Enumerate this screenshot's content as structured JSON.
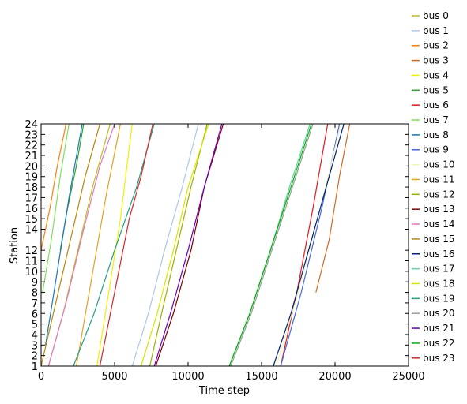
{
  "chart_data": {
    "type": "line",
    "xlabel": "Time step",
    "ylabel": "Station",
    "xlim": [
      0,
      25000
    ],
    "ylim": [
      1,
      24
    ],
    "x_ticks": [
      {
        "value": 0,
        "label": "0"
      },
      {
        "value": 5000,
        "label": "5000"
      },
      {
        "value": 10000,
        "label": "10000"
      },
      {
        "value": 15000,
        "label": "15000"
      },
      {
        "value": 20000,
        "label": "20000"
      },
      {
        "value": 25000,
        "label": "25000"
      }
    ],
    "y_ticks": [
      {
        "value": 1,
        "label": "1"
      },
      {
        "value": 2,
        "label": "2"
      },
      {
        "value": 3,
        "label": "3"
      },
      {
        "value": 4,
        "label": "4"
      },
      {
        "value": 5,
        "label": "5"
      },
      {
        "value": 6,
        "label": "6"
      },
      {
        "value": 7,
        "label": "7"
      },
      {
        "value": 8,
        "label": "8"
      },
      {
        "value": 9,
        "label": "9"
      },
      {
        "value": 10,
        "label": "10"
      },
      {
        "value": 11,
        "label": "11"
      },
      {
        "value": 12,
        "label": "12"
      },
      {
        "value": 14,
        "label": "14"
      },
      {
        "value": 15,
        "label": "15"
      },
      {
        "value": 16,
        "label": "16"
      },
      {
        "value": 17,
        "label": "17"
      },
      {
        "value": 18,
        "label": "18"
      },
      {
        "value": 19,
        "label": "19"
      },
      {
        "value": 20,
        "label": "20"
      },
      {
        "value": 21,
        "label": "21"
      },
      {
        "value": 22,
        "label": "22"
      },
      {
        "value": 23,
        "label": "23"
      },
      {
        "value": 24,
        "label": "24"
      }
    ],
    "legend_position": "right, outside plot",
    "grid": false,
    "series": [
      {
        "name": "bus  0",
        "color": "#bcbd22",
        "x": [
          500,
          1500,
          2500,
          3500,
          4700
        ],
        "y": [
          1,
          6,
          12,
          18,
          24
        ]
      },
      {
        "name": "bus  1",
        "color": "#aec7e8",
        "x": [
          6200,
          7300,
          8400,
          9600,
          10700
        ],
        "y": [
          1,
          6,
          12,
          18,
          24
        ]
      },
      {
        "name": "bus  2",
        "color": "#ff7f0e",
        "x": [
          0,
          600,
          1100,
          1700
        ],
        "y": [
          12,
          16,
          20,
          24
        ]
      },
      {
        "name": "bus  3",
        "color": "#d2691e",
        "x": [
          18700,
          19600,
          20300,
          21000
        ],
        "y": [
          8,
          13,
          19,
          24
        ]
      },
      {
        "name": "bus  4",
        "color": "#f0f000",
        "x": [
          3800,
          4600,
          5400,
          6200
        ],
        "y": [
          1,
          8,
          15,
          24
        ]
      },
      {
        "name": "bus  5",
        "color": "#2ca02c",
        "x": [
          1300,
          1800,
          2400,
          2900
        ],
        "y": [
          12,
          16,
          20,
          24
        ]
      },
      {
        "name": "bus  6",
        "color": "#e41a1c",
        "x": [
          16300,
          17400,
          18500,
          19500
        ],
        "y": [
          1,
          8,
          16,
          24
        ]
      },
      {
        "name": "bus  7",
        "color": "#7fe05a",
        "x": [
          100,
          700,
          1300,
          1900
        ],
        "y": [
          8,
          13,
          19,
          24
        ]
      },
      {
        "name": "bus  8",
        "color": "#1f77b4",
        "x": [
          300,
          1100,
          1900,
          2800
        ],
        "y": [
          3,
          10,
          17,
          24
        ]
      },
      {
        "name": "bus  9",
        "color": "#4169e1",
        "x": [
          16300,
          17700,
          19100,
          20300
        ],
        "y": [
          1,
          8,
          16,
          24
        ]
      },
      {
        "name": "bus  10",
        "color": "#f5f5b0",
        "x": [
          16000,
          17500,
          19000,
          20400
        ],
        "y": [
          1,
          8,
          16,
          24
        ]
      },
      {
        "name": "bus  11",
        "color": "#e8a020",
        "x": [
          2400,
          3400,
          4400,
          5400
        ],
        "y": [
          1,
          9,
          17,
          24
        ]
      },
      {
        "name": "bus  12",
        "color": "#9bb000",
        "x": [
          7400,
          8200,
          9200,
          10200,
          11300
        ],
        "y": [
          1,
          6,
          12,
          18,
          24
        ]
      },
      {
        "name": "bus  13",
        "color": "#800000",
        "x": [
          7800,
          9000,
          10200,
          11100,
          12400
        ],
        "y": [
          1,
          6,
          12,
          18,
          24
        ]
      },
      {
        "name": "bus  14",
        "color": "#e377c2",
        "x": [
          500,
          1700,
          2900,
          4000,
          5000
        ],
        "y": [
          1,
          7,
          14,
          20,
          24
        ]
      },
      {
        "name": "bus  15",
        "color": "#b8860b",
        "x": [
          0,
          1000,
          2000,
          3000,
          4000
        ],
        "y": [
          1,
          7,
          13,
          19,
          24
        ]
      },
      {
        "name": "bus  16",
        "color": "#00207f",
        "x": [
          15800,
          17000,
          18200,
          19400,
          20600
        ],
        "y": [
          1,
          6,
          12,
          18,
          24
        ]
      },
      {
        "name": "bus  17",
        "color": "#66cdaa",
        "x": [
          12800,
          14200,
          15600,
          16900,
          18300
        ],
        "y": [
          1,
          6,
          12,
          18,
          24
        ]
      },
      {
        "name": "bus  18",
        "color": "#d4e600",
        "x": [
          6800,
          7900,
          9000,
          10000,
          11400
        ],
        "y": [
          1,
          6,
          12,
          18,
          24
        ]
      },
      {
        "name": "bus  19",
        "color": "#20a080",
        "x": [
          2200,
          3600,
          5000,
          6500,
          7700
        ],
        "y": [
          1,
          6,
          12,
          18,
          24
        ]
      },
      {
        "name": "bus  20",
        "color": "#999999",
        "x": [
          12900,
          14300,
          15700,
          17100,
          18500
        ],
        "y": [
          1,
          6,
          12,
          18,
          24
        ]
      },
      {
        "name": "bus  21",
        "color": "#6a00c0",
        "x": [
          7700,
          8800,
          10000,
          11100,
          12300
        ],
        "y": [
          1,
          6,
          12,
          18,
          24
        ]
      },
      {
        "name": "bus  22",
        "color": "#00b000",
        "x": [
          12800,
          14200,
          15600,
          17000,
          18400
        ],
        "y": [
          1,
          6,
          12,
          18,
          24
        ]
      },
      {
        "name": "bus  23",
        "color": "#d62728",
        "x": [
          4000,
          5000,
          6000,
          6800,
          7600
        ],
        "y": [
          1,
          8,
          15,
          19,
          24
        ]
      }
    ]
  }
}
